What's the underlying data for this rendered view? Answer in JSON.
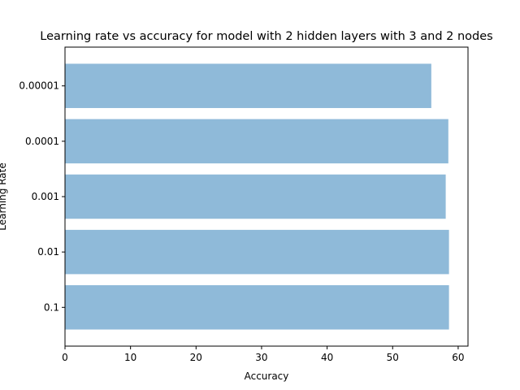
{
  "chart_data": {
    "type": "bar",
    "orientation": "horizontal",
    "title": "Learning rate vs accuracy for model with 2 hidden layers with 3 and 2 nodes",
    "xlabel": "Accuracy",
    "ylabel": "Learning Rate",
    "categories": [
      "0.1",
      "0.01",
      "0.001",
      "0.0001",
      "0.00001"
    ],
    "values": [
      58.6,
      58.6,
      58.1,
      58.5,
      55.9
    ],
    "xlim": [
      0,
      61.5
    ],
    "xticks": [
      0,
      10,
      20,
      30,
      40,
      50,
      60
    ],
    "grid": false,
    "legend": "none",
    "bar_color": "#8fbad9"
  }
}
